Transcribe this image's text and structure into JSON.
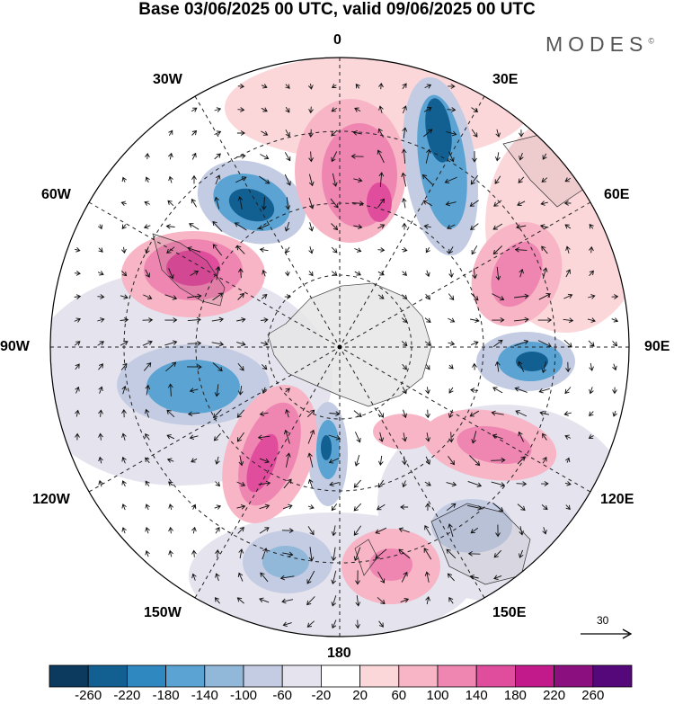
{
  "title": "Base 03/06/2025 00 UTC, valid 09/06/2025 00 UTC",
  "brand": "MODES",
  "brand_mark": "©",
  "longitudes": {
    "top": "0",
    "bottom": "180",
    "left": "90W",
    "right": "90E",
    "nw1": "30W",
    "nw2": "60W",
    "ne1": "30E",
    "ne2": "60E",
    "sw1": "120W",
    "sw2": "150W",
    "se1": "120E",
    "se2": "150E"
  },
  "reference_vector": {
    "label": "30"
  },
  "colorbar": {
    "colors": [
      "#0b3a5e",
      "#125f92",
      "#2f88c0",
      "#5aa3d2",
      "#91b7d9",
      "#c3cce3",
      "#e4e3ee",
      "#ffffff",
      "#fbd7da",
      "#f7b5c6",
      "#ef86b2",
      "#e04d9d",
      "#c21a8a",
      "#8c0f7f",
      "#55087a"
    ],
    "ticks": [
      "-260",
      "-220",
      "-180",
      "-140",
      "-100",
      "-60",
      "-20",
      "20",
      "60",
      "100",
      "140",
      "180",
      "220",
      "260"
    ]
  }
}
